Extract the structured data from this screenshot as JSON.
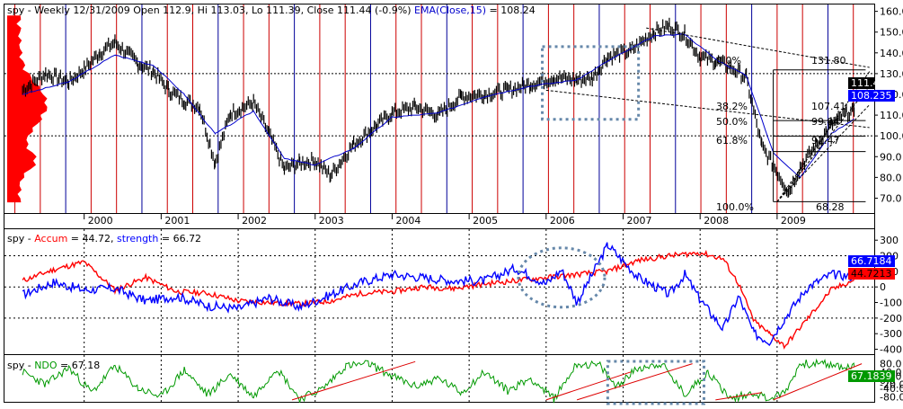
{
  "colors": {
    "price": "#000000",
    "ema": "#0000cc",
    "volume_profile": "#ff0000",
    "month_line_red": "#cc0000",
    "month_line_blue": "#000099",
    "accum": "#ff0000",
    "strength": "#0000ff",
    "ndo": "#009900",
    "trendline": "#dd0000",
    "annotation": "#6688aa",
    "fib": "#000000",
    "badge_close": "#000000",
    "badge_ema": "#0000ff",
    "badge_accum": "#ff0000",
    "badge_strength": "#0000ff",
    "badge_ndo": "#009900"
  },
  "panels": {
    "price": {
      "title": {
        "ticker": "spy - ",
        "info": "Weekly 12/31/2009 Open 112.9, Hi 113.03, Lo 111.39, Close 111.44 (-0.9%)",
        "ema_label": "EMA(Close,15)",
        "ema_value": " = 108.24"
      },
      "badges": {
        "close": "111.44",
        "ema": "108.235"
      },
      "fib_labels": [
        {
          "pct": "0.0%",
          "value": "131.80"
        },
        {
          "pct": "38.2%",
          "value": "107.41"
        },
        {
          "pct": "50.0%",
          "value": "99.94"
        },
        {
          "pct": "61.8%",
          "value": "92.47"
        },
        {
          "pct": "100.0%",
          "value": "68.28"
        }
      ]
    },
    "accum": {
      "title": {
        "ticker": "spy - ",
        "accum_label": "Accum",
        "accum_value": " = 44.72, ",
        "strength_label": "strength",
        "strength_value": " = 66.72"
      },
      "badges": {
        "strength": "66.7184",
        "accum": "44.7213"
      }
    },
    "ndo": {
      "title": {
        "ticker": "spy - ",
        "ndo_label": "NDO",
        "ndo_value": " = 67.18"
      },
      "badges": {
        "ndo": "67.1839"
      }
    }
  },
  "chart_data": [
    {
      "type": "line",
      "title": "spy - Weekly 12/31/2009 Open 112.9, Hi 113.03, Lo 111.39, Close 111.44 (-0.9%) EMA(Close,15) = 108.24",
      "x_labels": [
        "2000",
        "2001",
        "2002",
        "2003",
        "2004",
        "2005",
        "2006",
        "2007",
        "2008",
        "2009"
      ],
      "yticks": [
        70,
        80,
        90,
        100,
        110,
        120,
        130,
        140,
        150,
        160
      ],
      "ylim": [
        65,
        162
      ],
      "series": [
        {
          "name": "Close",
          "x": [
            1999.2,
            1999.5,
            1999.8,
            2000.0,
            2000.2,
            2000.4,
            2000.7,
            2000.9,
            2001.1,
            2001.3,
            2001.5,
            2001.7,
            2001.9,
            2002.2,
            2002.4,
            2002.6,
            2002.8,
            2003.0,
            2003.2,
            2003.5,
            2003.8,
            2004.0,
            2004.3,
            2004.6,
            2004.9,
            2005.2,
            2005.5,
            2005.8,
            2006.1,
            2006.4,
            2006.6,
            2006.8,
            2007.1,
            2007.4,
            2007.6,
            2007.8,
            2008.0,
            2008.2,
            2008.4,
            2008.6,
            2008.8,
            2008.95,
            2009.15,
            2009.3,
            2009.5,
            2009.7,
            2009.9,
            2010.0
          ],
          "values": [
            122,
            130,
            126,
            132,
            140,
            145,
            135,
            131,
            122,
            117,
            114,
            87,
            111,
            116,
            101,
            84,
            87,
            88,
            81,
            96,
            105,
            111,
            114,
            110,
            119,
            120,
            122,
            125,
            128,
            127,
            128,
            138,
            141,
            150,
            153,
            149,
            138,
            136,
            133,
            128,
            95,
            86,
            73,
            85,
            95,
            105,
            111,
            111.44
          ]
        },
        {
          "name": "EMA(Close,15)",
          "x": [
            1999.2,
            1999.8,
            2000.4,
            2000.9,
            2001.3,
            2001.7,
            2002.2,
            2002.6,
            2003.0,
            2003.5,
            2004.0,
            2004.6,
            2005.2,
            2005.8,
            2006.4,
            2006.8,
            2007.4,
            2007.8,
            2008.2,
            2008.6,
            2008.95,
            2009.3,
            2009.7,
            2010.0
          ],
          "values": [
            120,
            126,
            139,
            134,
            120,
            101,
            112,
            89,
            86,
            94,
            109,
            111,
            119,
            124,
            127,
            136,
            148,
            149,
            137,
            129,
            92,
            80,
            101,
            108.24
          ]
        }
      ]
    },
    {
      "type": "line",
      "title": "spy - Accum = 44.72, strength = 66.72",
      "yticks": [
        -400,
        -300,
        -200,
        -100,
        0,
        100,
        200,
        300
      ],
      "ylim": [
        -420,
        330
      ],
      "series": [
        {
          "name": "Accum",
          "x": [
            1999.2,
            1999.6,
            2000.0,
            2000.4,
            2000.8,
            2001.2,
            2001.6,
            2002.0,
            2002.4,
            2002.8,
            2003.2,
            2003.6,
            2004.0,
            2004.4,
            2004.8,
            2005.2,
            2005.6,
            2006.0,
            2006.4,
            2006.8,
            2007.2,
            2007.6,
            2008.0,
            2008.3,
            2008.5,
            2008.7,
            2008.9,
            2009.1,
            2009.4,
            2009.7,
            2010.0
          ],
          "values": [
            40,
            110,
            160,
            -20,
            60,
            -30,
            -40,
            -90,
            -100,
            -110,
            -90,
            -40,
            -30,
            0,
            -10,
            20,
            40,
            60,
            80,
            100,
            170,
            200,
            220,
            180,
            20,
            -220,
            -300,
            -380,
            -200,
            -20,
            44.72
          ]
        },
        {
          "name": "strength",
          "x": [
            1999.2,
            1999.6,
            2000.0,
            2000.4,
            2000.8,
            2001.2,
            2001.6,
            2002.0,
            2002.4,
            2002.8,
            2003.2,
            2003.6,
            2004.0,
            2004.4,
            2004.8,
            2005.2,
            2005.6,
            2006.0,
            2006.2,
            2006.4,
            2006.6,
            2006.8,
            2007.2,
            2007.6,
            2007.8,
            2008.0,
            2008.3,
            2008.5,
            2008.7,
            2008.9,
            2009.1,
            2009.4,
            2009.7,
            2010.0
          ],
          "values": [
            -50,
            30,
            -20,
            -10,
            -90,
            -60,
            -120,
            -140,
            -70,
            -130,
            -50,
            30,
            80,
            60,
            40,
            40,
            120,
            20,
            110,
            -100,
            80,
            270,
            60,
            -50,
            80,
            -80,
            -270,
            -60,
            -300,
            -350,
            -200,
            0,
            80,
            66.72
          ]
        }
      ]
    },
    {
      "type": "line",
      "title": "spy - NDO = 67.18",
      "yticks": [
        -80,
        -40,
        -20,
        0,
        20,
        40,
        80
      ],
      "ylim": [
        -100,
        100
      ],
      "series": [
        {
          "name": "NDO",
          "x": [
            1999.2,
            1999.5,
            1999.8,
            2000.1,
            2000.4,
            2000.7,
            2001.0,
            2001.3,
            2001.6,
            2001.9,
            2002.2,
            2002.5,
            2002.8,
            2003.1,
            2003.4,
            2003.7,
            2004.0,
            2004.3,
            2004.6,
            2004.9,
            2005.2,
            2005.5,
            2005.8,
            2006.1,
            2006.4,
            2006.7,
            2006.9,
            2007.2,
            2007.5,
            2007.8,
            2008.1,
            2008.4,
            2008.7,
            2008.9,
            2009.1,
            2009.3,
            2009.6,
            2009.9,
            2010.0
          ],
          "values": [
            40,
            -20,
            60,
            -60,
            70,
            -40,
            -80,
            50,
            -70,
            30,
            -80,
            60,
            -90,
            -40,
            70,
            80,
            20,
            -30,
            10,
            -60,
            40,
            -50,
            10,
            -90,
            80,
            70,
            -30,
            60,
            80,
            -70,
            40,
            -90,
            -60,
            -90,
            -60,
            80,
            80,
            60,
            67.18
          ]
        }
      ]
    }
  ]
}
